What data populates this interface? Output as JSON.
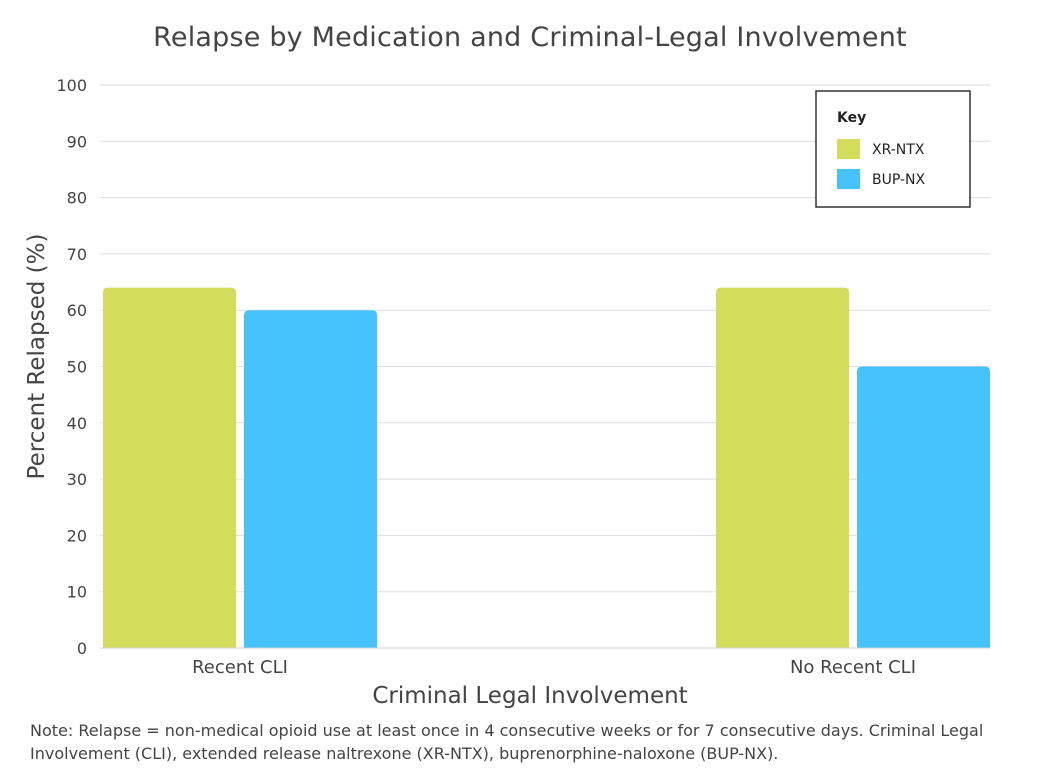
{
  "chart_data": {
    "type": "bar",
    "title": "Relapse by Medication and Criminal-Legal Involvement",
    "xlabel": "Criminal Legal Involvement",
    "ylabel": "Percent Relapsed (%)",
    "categories": [
      "Recent CLI",
      "No Recent CLI"
    ],
    "series": [
      {
        "name": "XR-NTX",
        "values": [
          64,
          64
        ],
        "color": "#d4dc5c"
      },
      {
        "name": "BUP-NX",
        "values": [
          60,
          50
        ],
        "color": "#46c3fc"
      }
    ],
    "ylim": [
      0,
      100
    ],
    "yticks": [
      0,
      10,
      20,
      30,
      40,
      50,
      60,
      70,
      80,
      90,
      100
    ],
    "grid": true,
    "legend": {
      "title": "Key",
      "placement": "top-right"
    },
    "note": "Note: Relapse = non-medical opioid use at least once in 4 consecutive weeks or for 7 consecutive days. Criminal Legal Involvement (CLI), extended release naltrexone (XR-NTX), buprenorphine-naloxone (BUP-NX)."
  }
}
